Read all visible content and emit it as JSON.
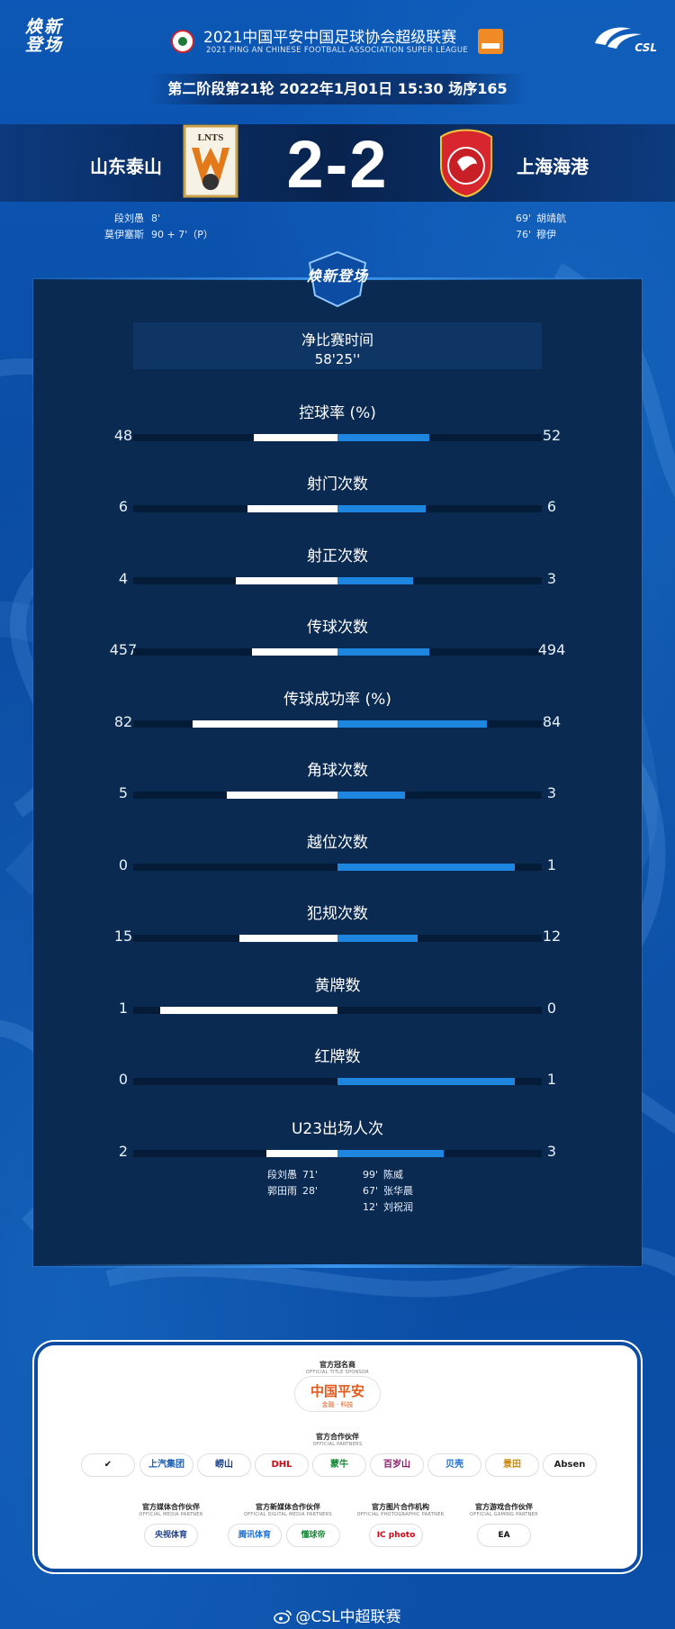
{
  "header": {
    "logo_left": "焕新登场",
    "league_title": "2021中国平安中国足球协会超级联赛",
    "league_subtitle": "2021 PING AN CHINESE FOOTBALL ASSOCIATION SUPER LEAGUE",
    "csl": "CSL"
  },
  "round_info": "第二阶段第21轮  2022年1月01日 15:30 场序165",
  "match": {
    "home_team": "山东泰山",
    "away_team": "上海海港",
    "home_crest_text": "LNTS",
    "score": "2-2",
    "home_scorers": [
      {
        "name": "段刘愚",
        "minute": "8'"
      },
      {
        "name": "莫伊塞斯",
        "minute": "90 + 7'（P）"
      }
    ],
    "away_scorers": [
      {
        "minute": "69'",
        "name": "胡靖航"
      },
      {
        "minute": "76'",
        "name": "穆伊"
      }
    ]
  },
  "panel": {
    "emblem": "焕新登场",
    "time_label": "净比赛时间",
    "time_value": "58'25''"
  },
  "stats": [
    {
      "label": "控球率 (%)",
      "home": "48",
      "away": "52",
      "home_frac": 0.41,
      "away_frac": 0.45
    },
    {
      "label": "射门次数",
      "home": "6",
      "away": "6",
      "home_frac": 0.44,
      "away_frac": 0.43
    },
    {
      "label": "射正次数",
      "home": "4",
      "away": "3",
      "home_frac": 0.5,
      "away_frac": 0.37
    },
    {
      "label": "传球次数",
      "home": "457",
      "away": "494",
      "home_frac": 0.42,
      "away_frac": 0.45
    },
    {
      "label": "传球成功率 (%)",
      "home": "82",
      "away": "84",
      "home_frac": 0.71,
      "away_frac": 0.73
    },
    {
      "label": "角球次数",
      "home": "5",
      "away": "3",
      "home_frac": 0.54,
      "away_frac": 0.33
    },
    {
      "label": "越位次数",
      "home": "0",
      "away": "1",
      "home_frac": 0.0,
      "away_frac": 0.87
    },
    {
      "label": "犯规次数",
      "home": "15",
      "away": "12",
      "home_frac": 0.48,
      "away_frac": 0.39
    },
    {
      "label": "黄牌数",
      "home": "1",
      "away": "0",
      "home_frac": 0.87,
      "away_frac": 0.0
    },
    {
      "label": "红牌数",
      "home": "0",
      "away": "1",
      "home_frac": 0.0,
      "away_frac": 0.87
    },
    {
      "label": "U23出场人次",
      "home": "2",
      "away": "3",
      "home_frac": 0.35,
      "away_frac": 0.52
    }
  ],
  "u23": {
    "home": [
      {
        "name": "段刘愚",
        "minute": "71'"
      },
      {
        "name": "郭田雨",
        "minute": "28'"
      }
    ],
    "away": [
      {
        "minute": "99'",
        "name": "陈威"
      },
      {
        "minute": "67'",
        "name": "张华晨"
      },
      {
        "minute": "12'",
        "name": "刘祝润"
      }
    ]
  },
  "sponsors": {
    "title_caption": "官方冠名商",
    "title_caption_en": "OFFICIAL TITLE SPONSOR",
    "title_name": "中国平安",
    "title_sub": "金融 · 科技",
    "partners_caption": "官方合作伙伴",
    "partners_caption_en": "OFFICIAL PARTNERS",
    "partners": [
      {
        "name": "✔",
        "color": "#111111"
      },
      {
        "name": "上汽集团",
        "color": "#1a5fb4"
      },
      {
        "name": "崂山",
        "color": "#1a3f8a"
      },
      {
        "name": "DHL",
        "color": "#d40511"
      },
      {
        "name": "蒙牛",
        "color": "#1d8a3c"
      },
      {
        "name": "百岁山",
        "color": "#8a1a6a"
      },
      {
        "name": "贝壳",
        "color": "#1a6fd4"
      },
      {
        "name": "景田",
        "color": "#c98a10"
      },
      {
        "name": "Absen",
        "color": "#222222"
      }
    ],
    "media_groups": [
      {
        "caption": "官方媒体合作伙伴",
        "caption_en": "OFFICIAL MEDIA PARTNER"
      },
      {
        "caption": "官方新媒体合作伙伴",
        "caption_en": "OFFICIAL DIGITAL MEDIA PARTNERS"
      },
      {
        "caption": "官方图片合作机构",
        "caption_en": "OFFICIAL PHOTOGRAPHIC PARTNER"
      },
      {
        "caption": "官方游戏合作伙伴",
        "caption_en": "OFFICIAL GAMING PARTNER"
      }
    ],
    "media": [
      {
        "name": "央视体育",
        "color": "#1a3f8a"
      },
      {
        "name": "腾讯体育",
        "color": "#1a6fd4"
      },
      {
        "name": "懂球帝",
        "color": "#1d8a3c"
      },
      {
        "name": "IC photo",
        "color": "#d40511"
      },
      {
        "name": "EA",
        "color": "#111111"
      }
    ]
  },
  "footer": {
    "weibo": "@CSL中超联赛"
  }
}
